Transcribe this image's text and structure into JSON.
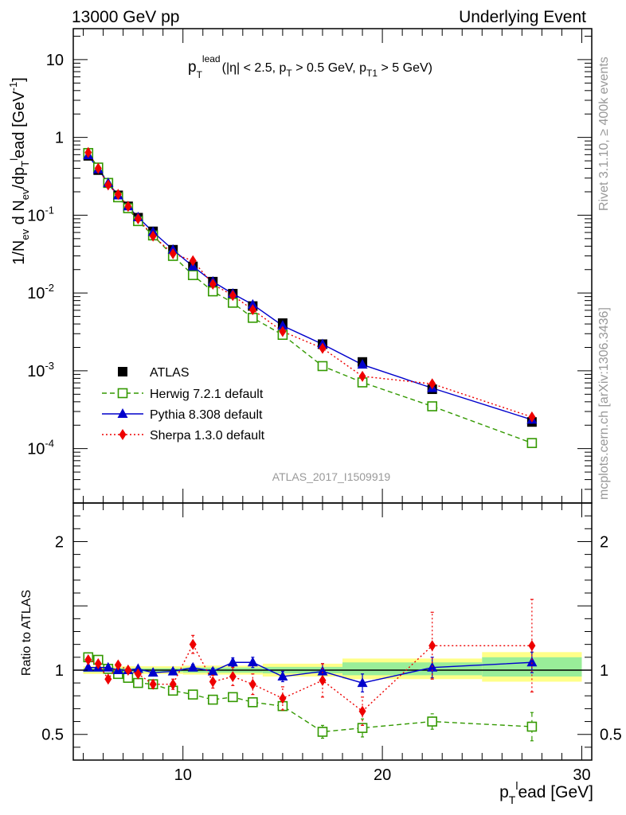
{
  "header": {
    "left": "13000 GeV pp",
    "right": "Underlying Event"
  },
  "side": {
    "rivet": "Rivet 3.1.10, ≥ 400k events",
    "mcplots": "mcplots.cern.ch [arXiv:1306.3436]"
  },
  "analysis_id": "ATLAS_2017_I1509919",
  "colors": {
    "atlas": "#000000",
    "herwig": "#339900",
    "pythia": "#0000cc",
    "sherpa": "#ee0000",
    "band_inner": "#99ee99",
    "band_outer": "#ffff88"
  },
  "chart_data": [
    {
      "type": "scatter",
      "panel": "main",
      "annotation": {
        "main": "p",
        "sub": "T",
        "sup": "lead",
        "rest": "(|η| < 2.5, p",
        "sub2": "T",
        "rest2": " > 0.5 GeV, p",
        "sub3": "T1",
        "rest3": " > 5 GeV)"
      },
      "ylabel": "1/N_ev d N_ev/dp_T^lead [GeV^-1]",
      "yscale": "log",
      "ylim": [
        2e-05,
        25
      ],
      "xlim": [
        4.5,
        30.5
      ],
      "ytick_labels": [
        "10",
        "1",
        "10^-1",
        "10^-2",
        "10^-3",
        "10^-4"
      ],
      "legend_position": "bottom-left",
      "x": [
        5.25,
        5.75,
        6.25,
        6.75,
        7.25,
        7.75,
        8.5,
        9.5,
        10.5,
        11.5,
        12.5,
        13.5,
        15.0,
        17.0,
        19.0,
        22.5,
        27.5
      ],
      "series": [
        {
          "name": "ATLAS",
          "style": "data",
          "values": [
            0.58,
            0.38,
            0.26,
            0.18,
            0.13,
            0.093,
            0.062,
            0.036,
            0.022,
            0.014,
            0.0098,
            0.0068,
            0.0041,
            0.0022,
            0.0013,
            0.00058,
            0.00022
          ]
        },
        {
          "name": "Herwig 7.2.1 default",
          "style": "open-square-dashed",
          "values": [
            0.63,
            0.41,
            0.26,
            0.17,
            0.123,
            0.084,
            0.055,
            0.03,
            0.017,
            0.0105,
            0.0075,
            0.0048,
            0.0029,
            0.00115,
            0.00071,
            0.00035,
            0.000118
          ]
        },
        {
          "name": "Pythia 8.308 default",
          "style": "triangle-solid",
          "values": [
            0.59,
            0.39,
            0.26,
            0.18,
            0.13,
            0.094,
            0.061,
            0.036,
            0.022,
            0.014,
            0.0098,
            0.0071,
            0.0038,
            0.0022,
            0.0012,
            0.0006,
            0.000235
          ]
        },
        {
          "name": "Sherpa 1.3.0 default",
          "style": "diamond-dotted",
          "values": [
            0.64,
            0.4,
            0.245,
            0.185,
            0.13,
            0.09,
            0.054,
            0.032,
            0.026,
            0.013,
            0.0093,
            0.0061,
            0.0032,
            0.00195,
            0.00085,
            0.00068,
            0.000255
          ]
        }
      ]
    },
    {
      "type": "scatter",
      "panel": "ratio",
      "ylabel": "Ratio to ATLAS",
      "ylim": [
        0.3,
        2.3
      ],
      "xlim": [
        4.5,
        30.5
      ],
      "xlabel": "p_T^lead [GeV]",
      "ytick_labels": [
        "2",
        "1",
        "0.5"
      ],
      "xtick_labels": [
        "10",
        "20",
        "30"
      ],
      "x": [
        5.25,
        5.75,
        6.25,
        6.75,
        7.25,
        7.75,
        8.5,
        9.5,
        10.5,
        11.5,
        12.5,
        13.5,
        15.0,
        17.0,
        19.0,
        22.5,
        27.5
      ],
      "bands": [
        {
          "x0": 5.0,
          "x1": 10.0,
          "inner": [
            0.985,
            1.015
          ],
          "outer": [
            0.97,
            1.03
          ]
        },
        {
          "x0": 10.0,
          "x1": 14.0,
          "inner": [
            0.98,
            1.02
          ],
          "outer": [
            0.965,
            1.035
          ]
        },
        {
          "x0": 14.0,
          "x1": 18.0,
          "inner": [
            0.975,
            1.025
          ],
          "outer": [
            0.95,
            1.05
          ]
        },
        {
          "x0": 18.0,
          "x1": 25.0,
          "inner": [
            0.96,
            1.06
          ],
          "outer": [
            0.93,
            1.09
          ]
        },
        {
          "x0": 25.0,
          "x1": 30.0,
          "inner": [
            0.95,
            1.1
          ],
          "outer": [
            0.91,
            1.14
          ]
        }
      ],
      "series": [
        {
          "name": "Herwig 7.2.1 default",
          "values": [
            1.1,
            1.08,
            1.01,
            0.97,
            0.94,
            0.9,
            0.89,
            0.84,
            0.81,
            0.77,
            0.79,
            0.75,
            0.72,
            0.52,
            0.55,
            0.6,
            0.56
          ],
          "errors": [
            0.01,
            0.01,
            0.01,
            0.01,
            0.01,
            0.01,
            0.015,
            0.02,
            0.02,
            0.02,
            0.025,
            0.03,
            0.03,
            0.05,
            0.07,
            0.06,
            0.11
          ]
        },
        {
          "name": "Pythia 8.308 default",
          "values": [
            1.02,
            1.02,
            1.02,
            1.0,
            1.0,
            1.01,
            0.98,
            0.99,
            1.02,
            0.99,
            1.06,
            1.06,
            0.95,
            0.99,
            0.9,
            1.02,
            1.06
          ],
          "errors": [
            0.01,
            0.01,
            0.01,
            0.01,
            0.01,
            0.01,
            0.015,
            0.015,
            0.025,
            0.025,
            0.035,
            0.04,
            0.04,
            0.06,
            0.07,
            0.08,
            0.08
          ]
        },
        {
          "name": "Sherpa 1.3.0 default",
          "values": [
            1.08,
            1.05,
            0.93,
            1.04,
            1.0,
            0.97,
            0.89,
            0.89,
            1.2,
            0.91,
            0.95,
            0.89,
            0.78,
            0.92,
            0.68,
            1.19,
            1.19
          ],
          "errors": [
            0.02,
            0.02,
            0.02,
            0.02,
            0.02,
            0.02,
            0.03,
            0.04,
            0.07,
            0.05,
            0.07,
            0.08,
            0.09,
            0.13,
            0.11,
            0.26,
            0.36
          ]
        }
      ]
    }
  ]
}
